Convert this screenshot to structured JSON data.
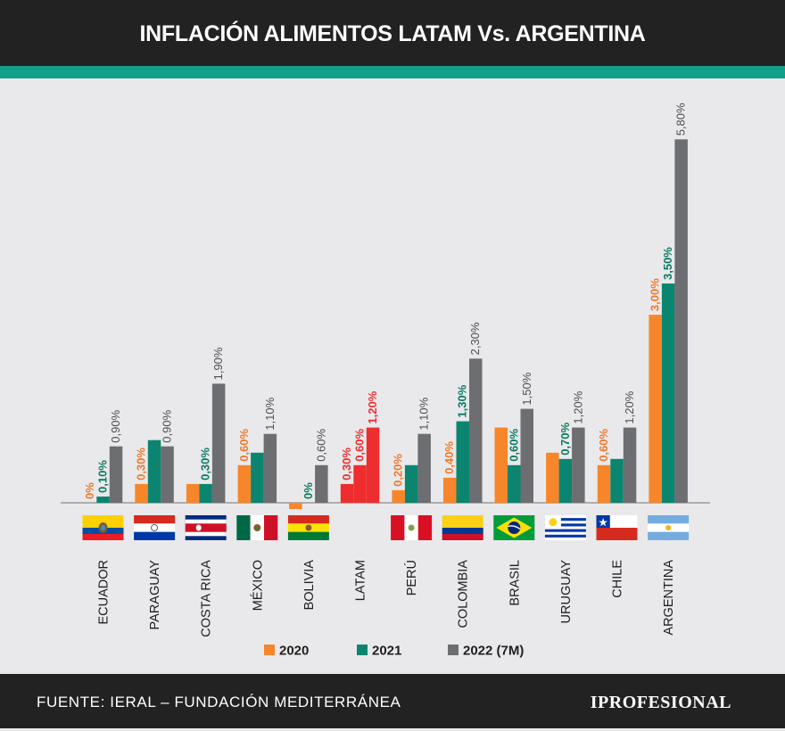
{
  "header": {
    "title": "INFLACIÓN ALIMENTOS LATAM Vs. ARGENTINA"
  },
  "footer": {
    "source": "FUENTE: IERAL – FUNDACIÓN MEDITERRÁNEA",
    "brand": "IPROFESIONAL"
  },
  "colors": {
    "2020": "#f7862b",
    "2021": "#0b8570",
    "2022": "#6d6e71",
    "latam": "#ee2d2f",
    "label_2020": "#f0792b",
    "label_2021": "#0b7a62",
    "label_2022": "#4f4f51",
    "label_latam": "#ee2d2f",
    "axis": "#8c8c8c"
  },
  "chart_data": {
    "type": "bar",
    "categories": [
      "ECUADOR",
      "PARAGUAY",
      "COSTA RICA",
      "MÉXICO",
      "BOLIVIA",
      "LATAM",
      "PERÚ",
      "COLOMBIA",
      "BRASIL",
      "URUGUAY",
      "CHILE",
      "ARGENTINA"
    ],
    "series": [
      {
        "name": "2020",
        "values": [
          0.0,
          0.3,
          0.3,
          0.6,
          -0.1,
          0.3,
          0.2,
          0.4,
          1.2,
          0.8,
          0.6,
          3.0
        ],
        "labels": [
          "0%",
          "0,30%",
          null,
          "0,60%",
          null,
          "0,30%",
          "0,20%",
          "0,40%",
          null,
          null,
          "0,60%",
          "3,00%"
        ]
      },
      {
        "name": "2021",
        "values": [
          0.1,
          1.0,
          0.3,
          0.8,
          0.0,
          0.6,
          0.6,
          1.3,
          0.6,
          0.7,
          0.7,
          3.5
        ],
        "labels": [
          "0,10%",
          null,
          "0,30%",
          null,
          "0%",
          "0,60%",
          null,
          "1,30%",
          "0,60%",
          "0,70%",
          null,
          "3,50%"
        ]
      },
      {
        "name": "2022 (7M)",
        "values": [
          0.9,
          0.9,
          1.9,
          1.1,
          0.6,
          1.2,
          1.1,
          2.3,
          1.5,
          1.2,
          1.2,
          5.8
        ],
        "labels": [
          "0,90%",
          "0,90%",
          "1,90%",
          "1,10%",
          "0,60%",
          "1,20%",
          "1,10%",
          "2,30%",
          "1,50%",
          "1,20%",
          "1,20%",
          "5,80%"
        ]
      }
    ],
    "flags": [
      "ecuador-flag",
      "paraguay-flag",
      "costa-rica-flag",
      "mexico-flag",
      "bolivia-flag",
      null,
      "peru-flag",
      "colombia-flag",
      "brazil-flag",
      "uruguay-flag",
      "chile-flag",
      "argentina-flag"
    ],
    "highlight_category": "LATAM",
    "legend": {
      "position": "bottom-center",
      "entries": [
        "2020",
        "2021",
        "2022 (7M)"
      ]
    },
    "ylim": [
      -0.2,
      6.2
    ],
    "grid": false,
    "xlabel": "",
    "ylabel": ""
  }
}
